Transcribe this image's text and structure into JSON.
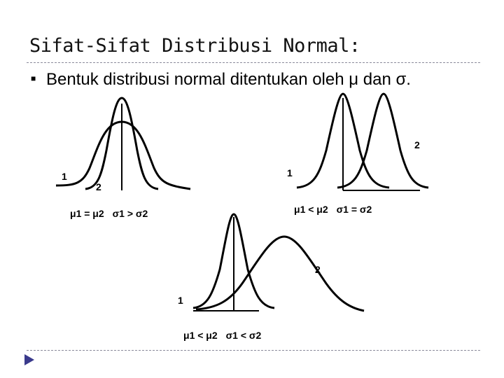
{
  "slide": {
    "title": "Sifat-Sifat Distribusi Normal:",
    "bullet_icon": "bullet-square-icon",
    "bullet_text": "Bentuk distribusi normal ditentukan oleh μ dan σ.",
    "nav_icon": "play-triangle-icon",
    "accent_color": "#3a3a8c"
  },
  "panels": [
    {
      "id": "equal-mean",
      "curve_labels": [
        "1",
        "2"
      ],
      "relation_mu": "μ1 = μ2",
      "relation_sigma": "σ1 > σ2"
    },
    {
      "id": "equal-sigma",
      "curve_labels": [
        "1",
        "2"
      ],
      "relation_mu": "μ1 < μ2",
      "relation_sigma": "σ1 = σ2"
    },
    {
      "id": "both-differ",
      "curve_labels": [
        "1",
        "2"
      ],
      "relation_mu": "μ1 < μ2",
      "relation_sigma": "σ1 < σ2"
    }
  ]
}
